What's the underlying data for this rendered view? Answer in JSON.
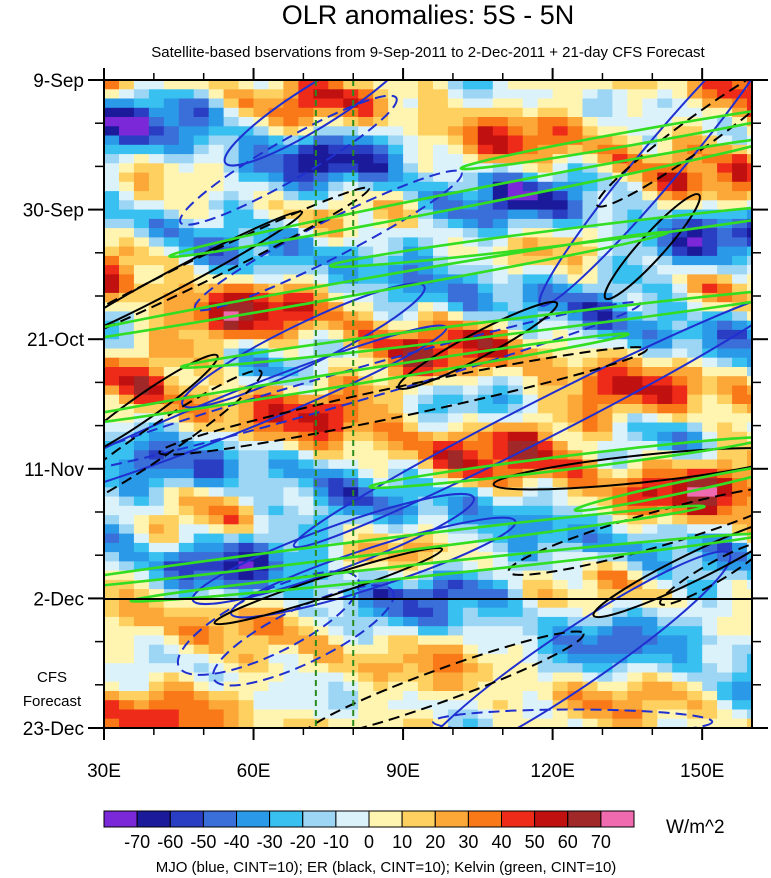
{
  "chart_data": {
    "type": "heatmap",
    "title": "OLR anomalies: 5S - 5N",
    "subtitle": "Satellite-based bservations from 9-Sep-2011 to 2-Dec-2011 + 21-day CFS Forecast",
    "x_ticks": [
      {
        "value": 30,
        "label": "30E"
      },
      {
        "value": 60,
        "label": "60E"
      },
      {
        "value": 90,
        "label": "90E"
      },
      {
        "value": 120,
        "label": "120E"
      },
      {
        "value": 150,
        "label": "150E"
      }
    ],
    "xlim": [
      30,
      160
    ],
    "y_ticks": [
      {
        "day": 0,
        "label": "9-Sep"
      },
      {
        "day": 21,
        "label": "30-Sep"
      },
      {
        "day": 42,
        "label": "21-Oct"
      },
      {
        "day": 63,
        "label": "11-Nov"
      },
      {
        "day": 84,
        "label": "2-Dec"
      },
      {
        "day": 105,
        "label": "23-Dec"
      }
    ],
    "ylim_days": [
      0,
      105
    ],
    "forecast_start_day": 84,
    "forecast_label_line1": "CFS",
    "forecast_label_line2": "Forecast",
    "reference_lines_lon": [
      72.5,
      80
    ],
    "colorbar": {
      "levels": [
        -70,
        -60,
        -50,
        -40,
        -30,
        -20,
        -10,
        0,
        10,
        20,
        30,
        40,
        50,
        60,
        70
      ],
      "labels": [
        "-70",
        "-60",
        "-50",
        "-40",
        "-30",
        "-20",
        "-10",
        "0",
        "10",
        "20",
        "30",
        "40",
        "50",
        "60",
        "70"
      ],
      "colors": [
        "#7a28d8",
        "#1a1a9a",
        "#2a3ec4",
        "#3a6ed8",
        "#2a9ae8",
        "#38c0f0",
        "#9cd6f4",
        "#dcf2fb",
        "#fff4b0",
        "#fed060",
        "#fba838",
        "#f97818",
        "#ee2a18",
        "#c01010",
        "#a02828",
        "#f06ab0"
      ],
      "unit": "W/m^2"
    },
    "contours_legend": "MJO (blue, CINT=10); ER (black, CINT=10); Kelvin (green, CINT=10)",
    "series_colors": {
      "MJO": "#1f2fd0",
      "ER": "#000000",
      "Kelvin": "#33dd22"
    }
  }
}
